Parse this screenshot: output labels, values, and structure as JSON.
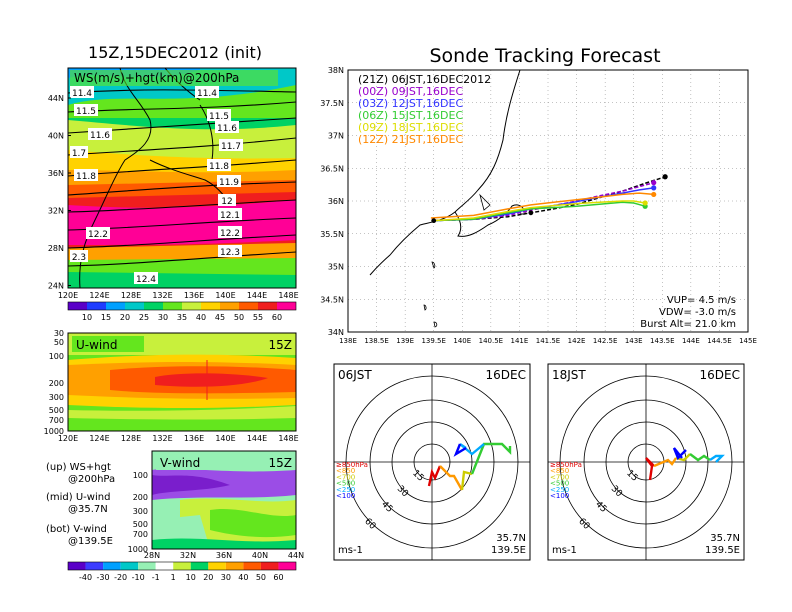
{
  "main_title": "Sonde Tracking Forecast",
  "map_panel": {
    "title": "15Z,15DEC2012 (init)",
    "inner_label": "WS(m/s)+hgt(km)@200hPa",
    "lat_ticks": [
      "44N",
      "40N",
      "36N",
      "32N",
      "28N",
      "24N"
    ],
    "lon_ticks": [
      "120E",
      "124E",
      "128E",
      "132E",
      "136E",
      "140E",
      "144E",
      "148E"
    ],
    "contour_labels": [
      "11.4",
      "11.5",
      "11.6",
      "11.7",
      "11.8",
      "11.9",
      "12",
      "12.1",
      "12.2",
      "12.3",
      "12.4",
      "11.4",
      "11.5",
      "11.6",
      "1.7",
      "11.8",
      "12.2",
      "2.3"
    ]
  },
  "ws_colorbar": {
    "ticks": [
      "10",
      "15",
      "20",
      "25",
      "30",
      "35",
      "40",
      "45",
      "50",
      "55",
      "60"
    ],
    "colors": [
      "#5a00c8",
      "#1e3cff",
      "#00a0ff",
      "#00c8c8",
      "#00d264",
      "#64e61e",
      "#c8f03c",
      "#ffd200",
      "#ffa000",
      "#ff5a00",
      "#f01e1e",
      "#ff0096"
    ]
  },
  "u_panel": {
    "title": "U-wind",
    "time": "15Z",
    "y_ticks": [
      "30",
      "50",
      "100",
      "200",
      "300",
      "500",
      "700",
      "1000"
    ],
    "x_ticks": [
      "120E",
      "124E",
      "128E",
      "132E",
      "136E",
      "140E",
      "144E",
      "148E"
    ]
  },
  "v_panel": {
    "title": "V-wind",
    "time": "15Z",
    "y_ticks": [
      "100",
      "200",
      "300",
      "500",
      "700",
      "1000"
    ],
    "x_ticks": [
      "28N",
      "32N",
      "36N",
      "40N",
      "44N"
    ]
  },
  "legend_notes": [
    {
      "line1": "(up) WS+hgt",
      "line2": "@200hPa"
    },
    {
      "line1": "(mid) U-wind",
      "line2": "@35.7N"
    },
    {
      "line1": "(bot) V-wind",
      "line2": "@139.5E"
    }
  ],
  "v_colorbar": {
    "ticks": [
      "-40",
      "-30",
      "-20",
      "-10",
      "-1",
      "1",
      "10",
      "20",
      "30",
      "40",
      "50",
      "60"
    ],
    "colors": [
      "#5a00c8",
      "#3c3cff",
      "#00a0ff",
      "#00c8c8",
      "#96f0b4",
      "#ffffff",
      "#c8f03c",
      "#00d264",
      "#ffd200",
      "#ffa000",
      "#ff5a00",
      "#f01e1e",
      "#ff0096"
    ]
  },
  "track_panel": {
    "lat_ticks": [
      "38N",
      "37.5N",
      "37N",
      "36.5N",
      "36N",
      "35.5N",
      "35N",
      "34.5N",
      "34N"
    ],
    "lon_ticks": [
      "138E",
      "138.5E",
      "139E",
      "139.5E",
      "140E",
      "140.5E",
      "141E",
      "141.5E",
      "142E",
      "142.5E",
      "143E",
      "143.5E",
      "144E",
      "144.5E",
      "145E"
    ],
    "vup": "VUP= 4.5 m/s",
    "vdw": "VDW= -3.0 m/s",
    "burst": "Burst Alt= 21.0 km"
  },
  "hodo_left": {
    "time": "06JST",
    "date": "16DEC",
    "lat": "35.7N",
    "lon": "139.5E",
    "unit": "ms-1",
    "ring_labels": [
      "15",
      "30",
      "45",
      "60"
    ]
  },
  "hodo_right": {
    "time": "18JST",
    "date": "16DEC",
    "lat": "35.7N",
    "lon": "139.5E",
    "unit": "ms-1",
    "ring_labels": [
      "15",
      "30",
      "45",
      "60"
    ]
  },
  "hodo_levels": [
    {
      "label": "≥850hPa",
      "color": "#e00000"
    },
    {
      "label": "<850",
      "color": "#ff9900"
    },
    {
      "label": "<700",
      "color": "#cccc00"
    },
    {
      "label": "<500",
      "color": "#33cc33"
    },
    {
      "label": "<250",
      "color": "#00aaff"
    },
    {
      "label": "<100",
      "color": "#0000ff"
    }
  ],
  "chart_data": {
    "type": "line",
    "title": "Sonde Tracking Forecast",
    "xlabel": "",
    "ylabel": "",
    "xlim": [
      138,
      145
    ],
    "ylim": [
      34,
      38
    ],
    "legend_position": "top-left",
    "launch": [
      139.5,
      35.7
    ],
    "series": [
      {
        "name": "(21Z) 06JST,16DEC2012",
        "color": "#000000",
        "dash": true,
        "x": [
          139.5,
          140.2,
          140.8,
          141.2,
          141.6,
          142.0,
          142.4,
          142.8,
          143.2,
          143.55
        ],
        "y": [
          35.7,
          35.72,
          35.76,
          35.82,
          35.88,
          35.95,
          36.05,
          36.15,
          36.27,
          36.37
        ]
      },
      {
        "name": "(00Z) 09JST,16DEC",
        "color": "#9900cc",
        "dash": true,
        "x": [
          139.5,
          140.2,
          140.8,
          141.2,
          141.6,
          142.0,
          142.4,
          142.8,
          143.1,
          143.35
        ],
        "y": [
          35.7,
          35.72,
          35.78,
          35.86,
          35.93,
          36.0,
          36.08,
          36.15,
          36.22,
          36.28
        ]
      },
      {
        "name": "(03Z) 12JST,16DEC",
        "color": "#3333ff",
        "dash": false,
        "x": [
          139.5,
          140.2,
          140.8,
          141.2,
          141.6,
          142.0,
          142.4,
          142.8,
          143.1,
          143.35
        ],
        "y": [
          35.7,
          35.72,
          35.8,
          35.88,
          35.93,
          35.99,
          36.06,
          36.12,
          36.17,
          36.2
        ]
      },
      {
        "name": "(06Z) 15JST,16DEC",
        "color": "#33cc33",
        "dash": false,
        "x": [
          139.5,
          140.2,
          140.8,
          141.2,
          141.6,
          142.0,
          142.4,
          142.8,
          143.0,
          143.2
        ],
        "y": [
          35.7,
          35.72,
          35.82,
          35.88,
          35.9,
          35.92,
          35.95,
          35.98,
          35.97,
          35.92
        ]
      },
      {
        "name": "(09Z) 18JST,16DEC",
        "color": "#dddd00",
        "dash": false,
        "x": [
          139.5,
          140.2,
          140.8,
          141.2,
          141.6,
          142.0,
          142.4,
          142.8,
          143.0,
          143.2
        ],
        "y": [
          35.7,
          35.74,
          35.84,
          35.9,
          35.93,
          35.96,
          35.98,
          36.0,
          36.0,
          35.97
        ]
      },
      {
        "name": "(12Z) 21JST,16DEC",
        "color": "#ff8800",
        "dash": false,
        "x": [
          139.45,
          140.2,
          140.8,
          141.2,
          141.6,
          142.0,
          142.4,
          142.8,
          143.1,
          143.35
        ],
        "y": [
          35.74,
          35.78,
          35.88,
          35.94,
          35.98,
          36.02,
          36.06,
          36.1,
          36.12,
          36.1
        ]
      }
    ]
  }
}
